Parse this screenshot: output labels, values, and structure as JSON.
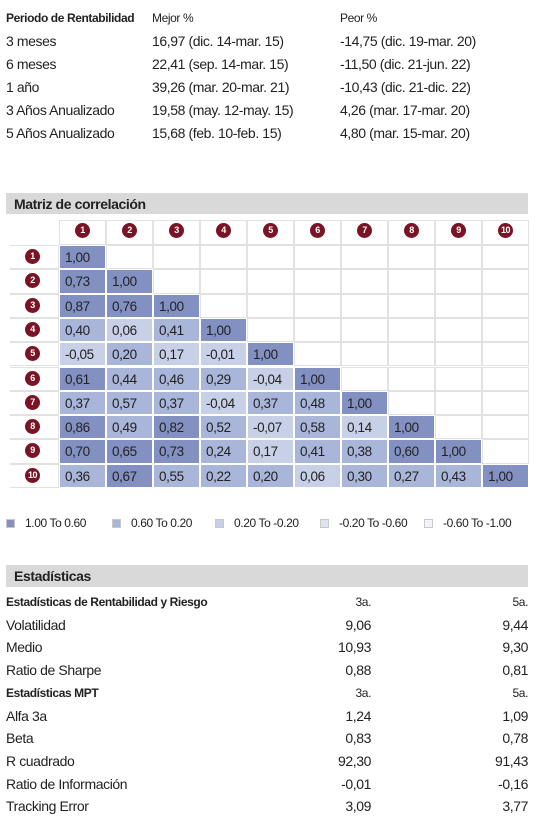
{
  "returns_table": {
    "header": [
      "Periodo de Rentabilidad",
      "Mejor %",
      "Peor %"
    ],
    "rows": [
      [
        "3 meses",
        "16,97 (dic. 14-mar. 15)",
        "-14,75 (dic. 19-mar. 20)"
      ],
      [
        "6 meses",
        "22,41 (sep. 14-mar. 15)",
        "-11,50 (dic. 21-jun. 22)"
      ],
      [
        "1 año",
        "39,26 (mar. 20-mar. 21)",
        "-10,43 (dic. 21-dic. 22)"
      ],
      [
        "3 Años Anualizado",
        "19,58 (may. 12-may. 15)",
        "4,26 (mar. 17-mar. 20)"
      ],
      [
        "5 Años Anualizado",
        "15,68 (feb. 10-feb. 15)",
        "4,80 (mar. 15-mar. 20)"
      ]
    ]
  },
  "correlation": {
    "title": "Matriz de correlación",
    "columns": [
      "1",
      "2",
      "3",
      "4",
      "5",
      "6",
      "7",
      "8",
      "9",
      "10"
    ],
    "rows": [
      {
        "label": "1",
        "cells": [
          "1,00"
        ]
      },
      {
        "label": "2",
        "cells": [
          "0,73",
          "1,00"
        ]
      },
      {
        "label": "3",
        "cells": [
          "0,87",
          "0,76",
          "1,00"
        ]
      },
      {
        "label": "4",
        "cells": [
          "0,40",
          "0,06",
          "0,41",
          "1,00"
        ]
      },
      {
        "label": "5",
        "cells": [
          "-0,05",
          "0,20",
          "0,17",
          "-0,01",
          "1,00"
        ]
      },
      {
        "label": "6",
        "cells": [
          "0,61",
          "0,44",
          "0,46",
          "0,29",
          "-0,04",
          "1,00"
        ]
      },
      {
        "label": "7",
        "cells": [
          "0,37",
          "0,57",
          "0,37",
          "-0,04",
          "0,37",
          "0,48",
          "1,00"
        ]
      },
      {
        "label": "8",
        "cells": [
          "0,86",
          "0,49",
          "0,82",
          "0,52",
          "-0,07",
          "0,58",
          "0,14",
          "1,00"
        ]
      },
      {
        "label": "9",
        "cells": [
          "0,70",
          "0,65",
          "0,73",
          "0,24",
          "0,17",
          "0,41",
          "0,38",
          "0,60",
          "1,00"
        ]
      },
      {
        "label": "10",
        "cells": [
          "0,36",
          "0,67",
          "0,55",
          "0,22",
          "0,20",
          "0,06",
          "0,30",
          "0,27",
          "0,43",
          "1,00"
        ]
      }
    ],
    "legend": [
      {
        "label": "1.00 To 0.60",
        "color": "#8391c2"
      },
      {
        "label": "0.60 To 0.20",
        "color": "#a9b5d9"
      },
      {
        "label": "0.20 To -0.20",
        "color": "#c8d0e8"
      },
      {
        "label": "-0.20 To -0.60",
        "color": "#dfe4f1"
      },
      {
        "label": "-0.60 To -1.00",
        "color": "#f4f5fa"
      }
    ]
  },
  "statistics": {
    "title": "Estadísticas",
    "sections": [
      {
        "header": [
          "Estadísticas de Rentabilidad y Riesgo",
          "3a.",
          "5a."
        ],
        "rows": [
          [
            "Volatilidad",
            "9,06",
            "9,44"
          ],
          [
            "Medio",
            "10,93",
            "9,30"
          ],
          [
            "Ratio de Sharpe",
            "0,88",
            "0,81"
          ]
        ]
      },
      {
        "header": [
          "Estadísticas MPT",
          "3a.",
          "5a."
        ],
        "rows": [
          [
            "Alfa 3a",
            "1,24",
            "1,09"
          ],
          [
            "Beta",
            "0,83",
            "0,78"
          ],
          [
            "R cuadrado",
            "92,30",
            "91,43"
          ],
          [
            "Ratio de Información",
            "-0,01",
            "-0,16"
          ],
          [
            "Tracking Error",
            "3,09",
            "3,77"
          ]
        ]
      }
    ]
  }
}
